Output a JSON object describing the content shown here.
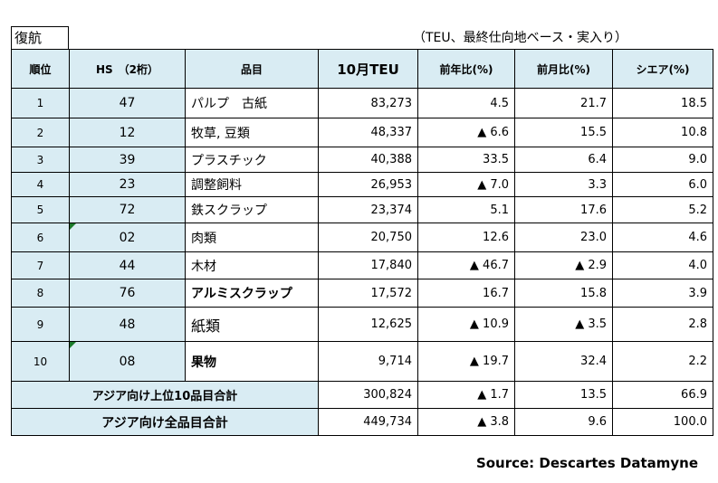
{
  "tag": "復航",
  "note": "（TEU、最終仕向地ベース・実入り）",
  "headers": {
    "rank": "順位",
    "hs": "HS　（2桁）",
    "item": "品目",
    "teu": "10月TEU",
    "yoy": "前年比(%)",
    "mom": "前月比(%)",
    "share": "シエア(%)"
  },
  "rows": [
    {
      "rank": "1",
      "hs": "47",
      "item": "パルプ　古紙",
      "teu": "83,273",
      "yoy": "4.5",
      "mom": "21.7",
      "share": "18.5"
    },
    {
      "rank": "2",
      "hs": "12",
      "item": "牧草, 豆類",
      "teu": "48,337",
      "yoy": "▲ 6.6",
      "mom": "15.5",
      "share": "10.8"
    },
    {
      "rank": "3",
      "hs": "39",
      "item": "プラスチック",
      "teu": "40,388",
      "yoy": "33.5",
      "mom": "6.4",
      "share": "9.0"
    },
    {
      "rank": "4",
      "hs": "23",
      "item": "調整飼料",
      "teu": "26,953",
      "yoy": "▲ 7.0",
      "mom": "3.3",
      "share": "6.0"
    },
    {
      "rank": "5",
      "hs": "72",
      "item": "鉄スクラップ",
      "teu": "23,374",
      "yoy": "5.1",
      "mom": "17.6",
      "share": "5.2"
    },
    {
      "rank": "6",
      "hs": "02",
      "item": "肉類",
      "teu": "20,750",
      "yoy": "12.6",
      "mom": "23.0",
      "share": "4.6"
    },
    {
      "rank": "7",
      "hs": "44",
      "item": "木材",
      "teu": "17,840",
      "yoy": "▲ 46.7",
      "mom": "▲ 2.9",
      "share": "4.0"
    },
    {
      "rank": "8",
      "hs": "76",
      "item": "アルミスクラップ",
      "teu": "17,572",
      "yoy": "16.7",
      "mom": "15.8",
      "share": "3.9"
    },
    {
      "rank": "9",
      "hs": "48",
      "item": "紙類",
      "teu": "12,625",
      "yoy": "▲ 10.9",
      "mom": "▲ 3.5",
      "share": "2.8"
    },
    {
      "rank": "10",
      "hs": "08",
      "item": "果物",
      "teu": "9,714",
      "yoy": "▲ 19.7",
      "mom": "32.4",
      "share": "2.2"
    }
  ],
  "totals": [
    {
      "label": "アジア向け上位10品目合計",
      "teu": "300,824",
      "yoy": "▲ 1.7",
      "mom": "13.5",
      "share": "66.9"
    },
    {
      "label": "アジア向け全品目合計",
      "teu": "449,734",
      "yoy": "▲ 3.8",
      "mom": "9.6",
      "share": "100.0"
    }
  ],
  "source": "Source: Descartes Datamyne"
}
